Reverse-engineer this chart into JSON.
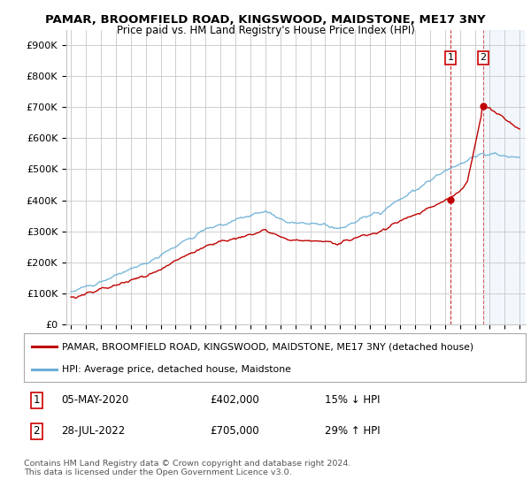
{
  "title": "PAMAR, BROOMFIELD ROAD, KINGSWOOD, MAIDSTONE, ME17 3NY",
  "subtitle": "Price paid vs. HM Land Registry's House Price Index (HPI)",
  "ylim": [
    0,
    950000
  ],
  "yticks": [
    0,
    100000,
    200000,
    300000,
    400000,
    500000,
    600000,
    700000,
    800000,
    900000
  ],
  "ytick_labels": [
    "£0",
    "£100K",
    "£200K",
    "£300K",
    "£400K",
    "£500K",
    "£600K",
    "£700K",
    "£800K",
    "£900K"
  ],
  "hpi_color": "#6aafd6",
  "price_color": "#c00000",
  "shaded_color": "#ddeeff",
  "t1_year": 2020.37,
  "t1_price": 402000,
  "t2_year": 2022.54,
  "t2_price": 705000,
  "legend_label_price": "PAMAR, BROOMFIELD ROAD, KINGSWOOD, MAIDSTONE, ME17 3NY (detached house)",
  "legend_label_hpi": "HPI: Average price, detached house, Maidstone",
  "footer": "Contains HM Land Registry data © Crown copyright and database right 2024.\nThis data is licensed under the Open Government Licence v3.0.",
  "background_color": "#ffffff",
  "grid_color": "#c8c8c8"
}
